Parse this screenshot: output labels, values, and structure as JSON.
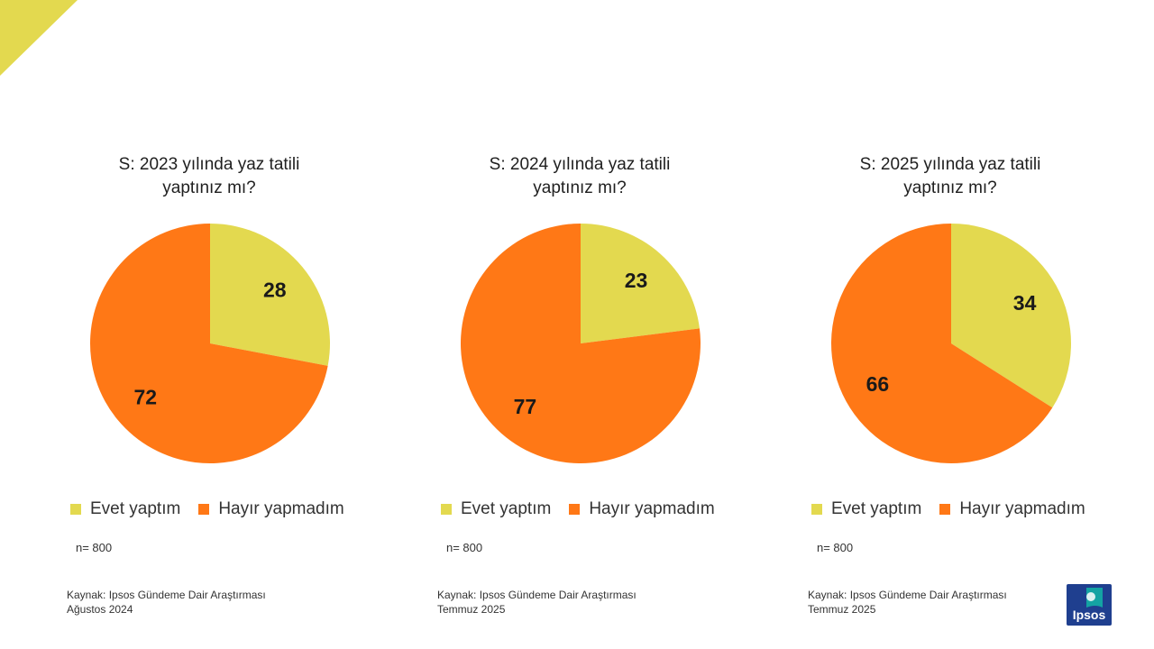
{
  "colors": {
    "evet": "#e3d94f",
    "hayir": "#ff7816",
    "accent": "#e3d94f",
    "logo_bg": "#1f3f8f",
    "logo_accent": "#14a3a3"
  },
  "logo": {
    "text": "Ipsos"
  },
  "chart_data": [
    {
      "type": "pie",
      "title": "S: 2023 yılında yaz tatili yaptınız mı?",
      "title_lines": [
        "S: 2023 yılında yaz tatili",
        "yaptınız mı?"
      ],
      "categories": [
        "Evet yaptım",
        "Hayır yapmadım"
      ],
      "values": [
        28,
        72
      ],
      "labels": [
        "28",
        "72"
      ],
      "legend": [
        "Evet yaptım",
        "Hayır yapmadım"
      ],
      "legend_position": "bottom",
      "n_label": "n= 800",
      "source": [
        "Kaynak: Ipsos Gündeme Dair Araştırması",
        "Ağustos 2024"
      ]
    },
    {
      "type": "pie",
      "title": "S: 2024 yılında yaz tatili yaptınız mı?",
      "title_lines": [
        "S: 2024 yılında yaz tatili",
        "yaptınız mı?"
      ],
      "categories": [
        "Evet yaptım",
        "Hayır yapmadım"
      ],
      "values": [
        23,
        77
      ],
      "labels": [
        "23",
        "77"
      ],
      "legend": [
        "Evet yaptım",
        "Hayır yapmadım"
      ],
      "legend_position": "bottom",
      "n_label": "n= 800",
      "source": [
        "Kaynak: Ipsos Gündeme Dair Araştırması",
        "Temmuz 2025"
      ]
    },
    {
      "type": "pie",
      "title": "S: 2025 yılında yaz tatili yaptınız mı?",
      "title_lines": [
        "S: 2025 yılında yaz tatili",
        "yaptınız mı?"
      ],
      "categories": [
        "Evet yaptım",
        "Hayır yapmadım"
      ],
      "values": [
        34,
        66
      ],
      "labels": [
        "34",
        "66"
      ],
      "legend": [
        "Evet yaptım",
        "Hayır yapmadım"
      ],
      "legend_position": "bottom",
      "n_label": "n= 800",
      "source": [
        "Kaynak: Ipsos Gündeme Dair Araştırması",
        "Temmuz 2025"
      ]
    }
  ]
}
